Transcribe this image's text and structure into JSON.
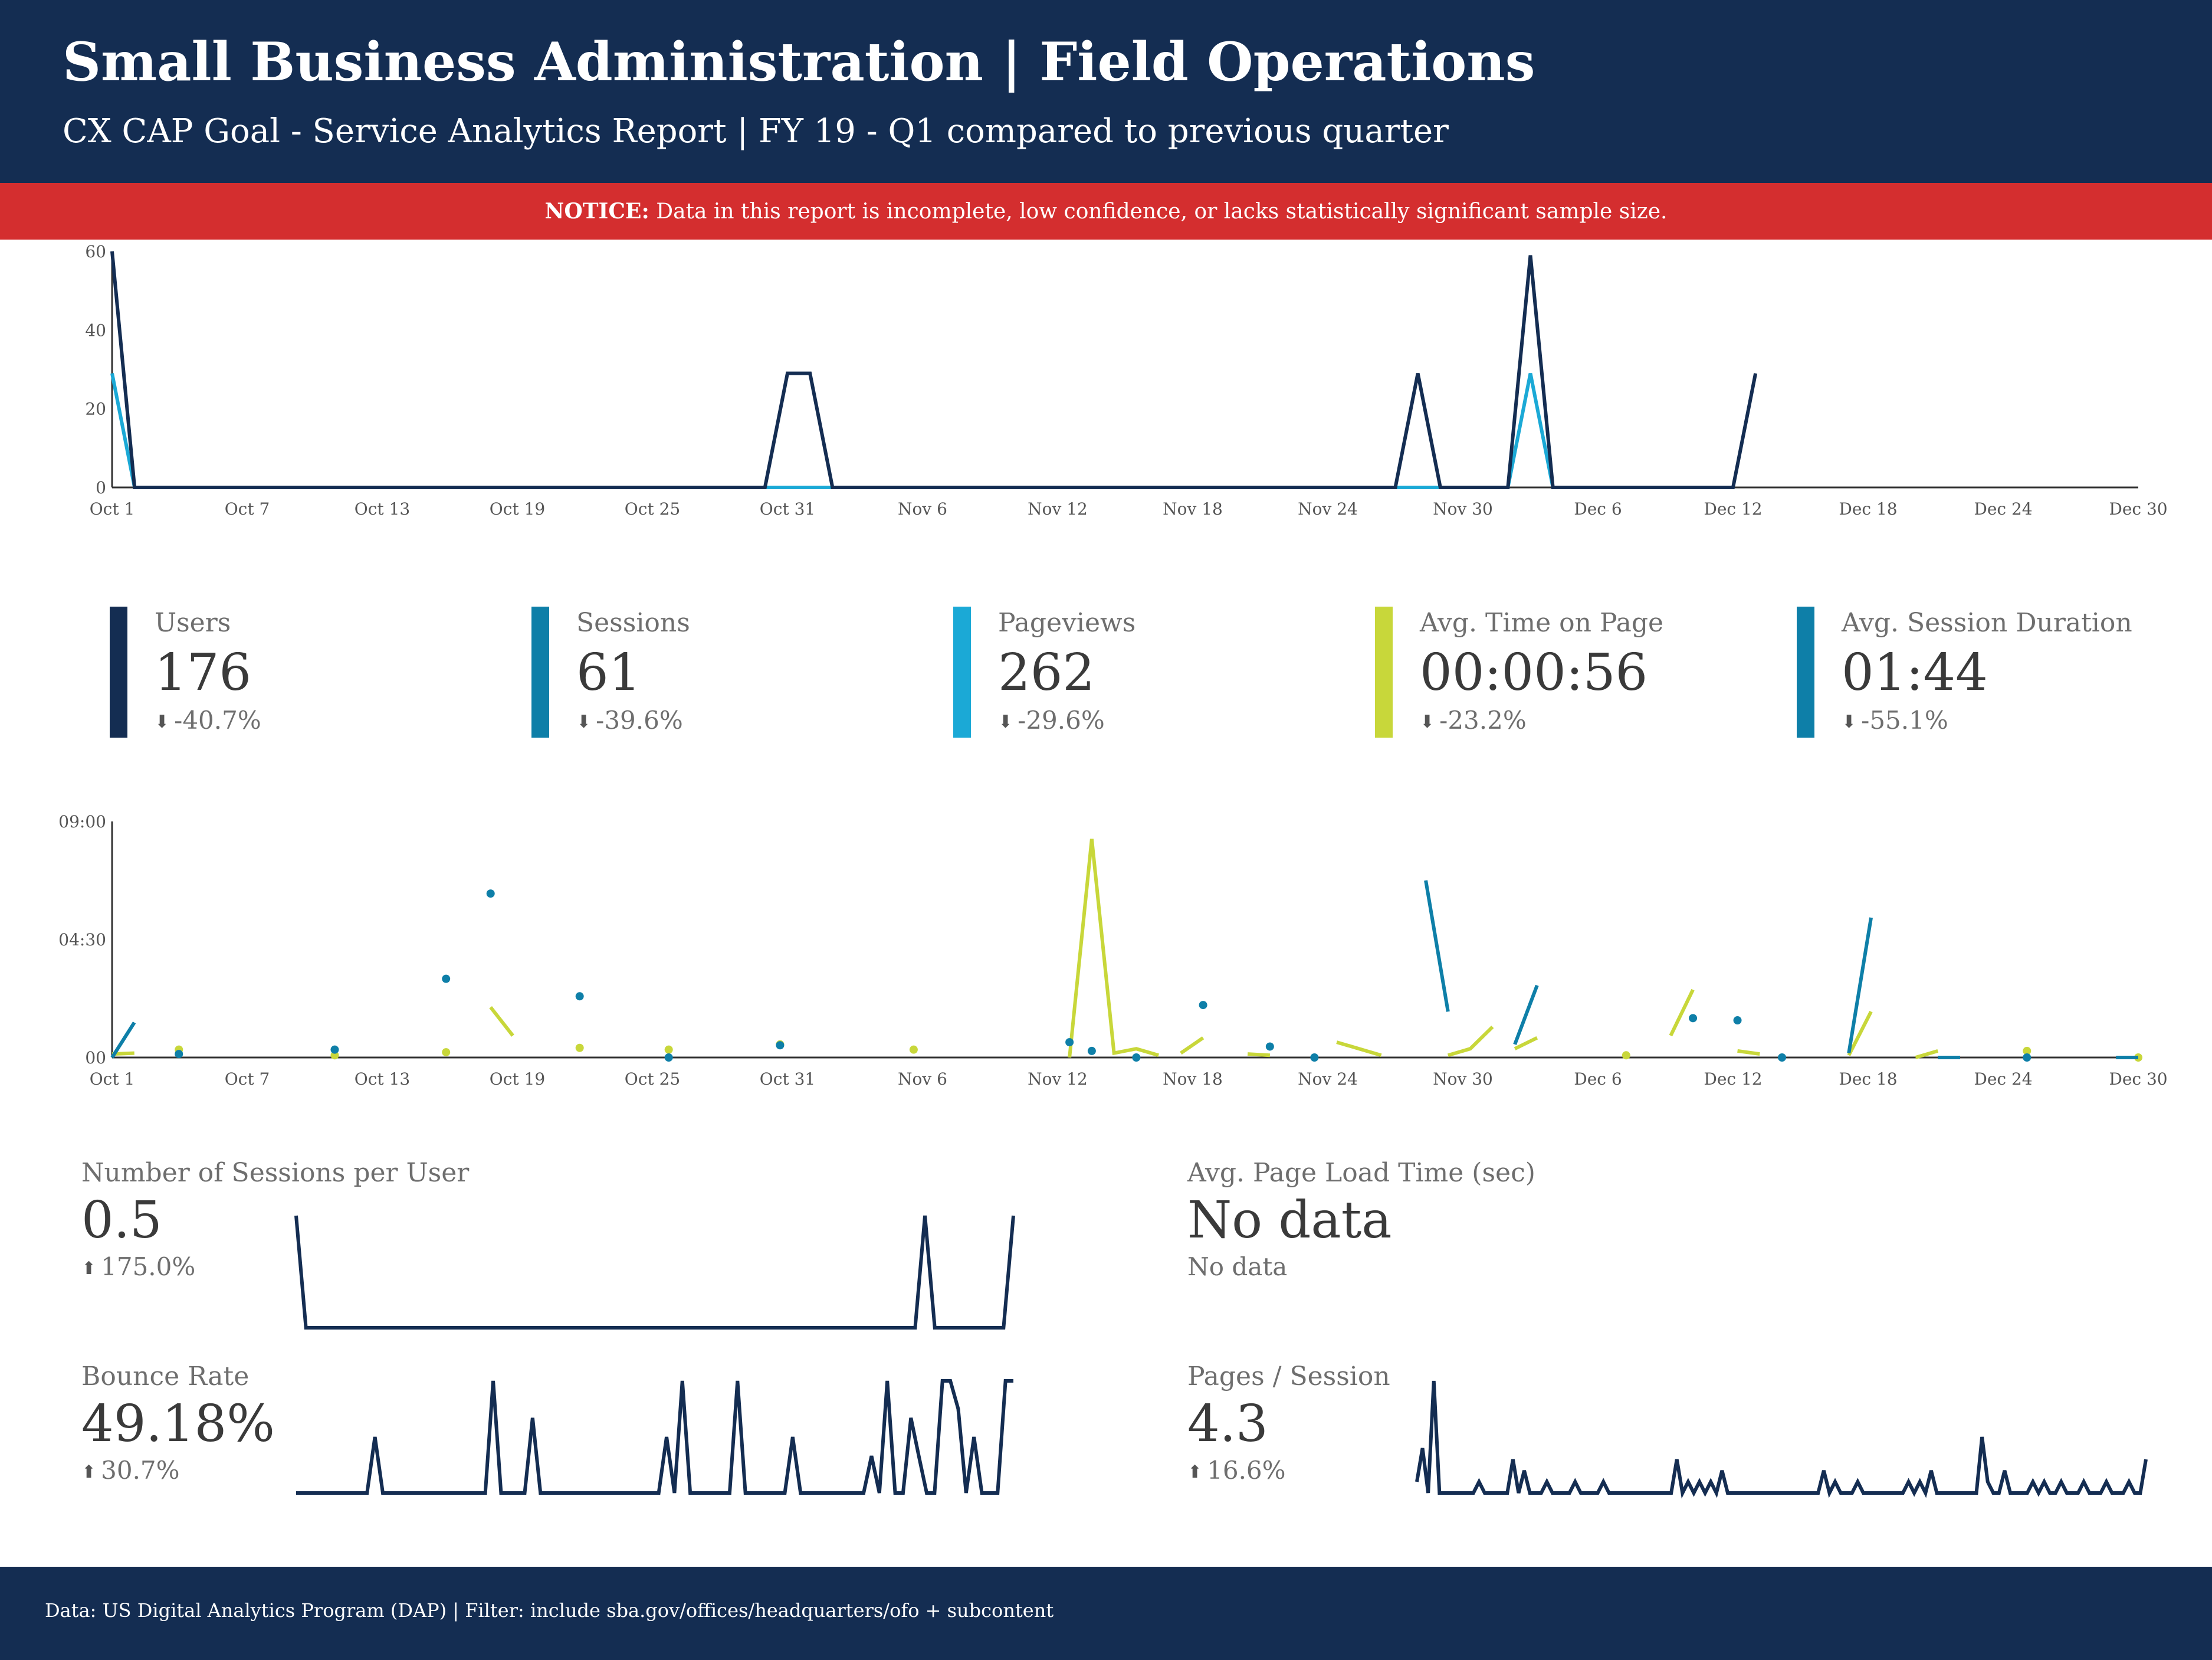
{
  "header": {
    "title": "Small Business Administration | Field Operations",
    "subtitle": "CX CAP Goal - Service Analytics Report | FY 19 - Q1 compared to previous quarter"
  },
  "notice": {
    "label": "NOTICE:",
    "text": " Data in this report is incomplete, low confidence, or lacks statistically significant sample size."
  },
  "colors": {
    "navy": "#142d52",
    "teal": "#0e7fa8",
    "sky": "#1ba9d6",
    "lime": "#c8d73a",
    "red": "#d42e2f"
  },
  "kpis": [
    {
      "label": "Users",
      "value": "176",
      "change": "-40.7%",
      "direction": "down",
      "color": "#142d52"
    },
    {
      "label": "Sessions",
      "value": "61",
      "change": "-39.6%",
      "direction": "down",
      "color": "#0e7fa8"
    },
    {
      "label": "Pageviews",
      "value": "262",
      "change": "-29.6%",
      "direction": "down",
      "color": "#1ba9d6"
    },
    {
      "label": "Avg. Time on Page",
      "value": "00:00:56",
      "change": "-23.2%",
      "direction": "down",
      "color": "#c8d73a"
    },
    {
      "label": "Avg. Session Duration",
      "value": "01:44",
      "change": "-55.1%",
      "direction": "down",
      "color": "#0e7fa8"
    }
  ],
  "metrics": {
    "sessions_per_user": {
      "label": "Number of Sessions per User",
      "value": "0.5",
      "change": "175.0%",
      "direction": "up"
    },
    "page_load": {
      "label": "Avg. Page Load Time (sec)",
      "value": "No data",
      "change": "No data"
    },
    "bounce_rate": {
      "label": "Bounce Rate",
      "value": "49.18%",
      "change": "30.7%",
      "direction": "up"
    },
    "pages_per_session": {
      "label": "Pages / Session",
      "value": "4.3",
      "change": "16.6%",
      "direction": "up"
    }
  },
  "footer": {
    "text": "Data: US Digital Analytics Program (DAP) | Filter: include sba.gov/offices/headquarters/ofo + subcontent"
  },
  "chart_data": [
    {
      "type": "line",
      "x_ticks": [
        "Oct 1",
        "Oct 7",
        "Oct 13",
        "Oct 19",
        "Oct 25",
        "Oct 31",
        "Nov 6",
        "Nov 12",
        "Nov 18",
        "Nov 24",
        "Nov 30",
        "Dec 6",
        "Dec 12",
        "Dec 18",
        "Dec 24",
        "Dec 30"
      ],
      "y_ticks": [
        "0",
        "20",
        "40",
        "60"
      ],
      "ylim": [
        0,
        60
      ],
      "day_range": [
        0,
        90
      ],
      "series": [
        {
          "key": "users",
          "color": "#142d52",
          "points": [
            [
              0,
              60
            ],
            [
              1,
              0
            ],
            [
              29,
              0
            ],
            [
              30,
              29
            ],
            [
              31,
              29
            ],
            [
              32,
              0
            ],
            [
              57,
              0
            ],
            [
              58,
              29
            ],
            [
              59,
              0
            ],
            [
              62,
              0
            ],
            [
              63,
              59
            ],
            [
              64,
              0
            ],
            [
              72,
              0
            ],
            [
              73,
              29
            ]
          ]
        },
        {
          "key": "sessions",
          "color": "#1ba9d6",
          "points": [
            [
              0,
              29
            ],
            [
              1,
              0
            ],
            [
              62,
              0
            ],
            [
              63,
              29
            ],
            [
              64,
              0
            ],
            [
              72,
              0
            ]
          ]
        }
      ]
    },
    {
      "type": "line",
      "x_ticks": [
        "Oct 1",
        "Oct 7",
        "Oct 13",
        "Oct 19",
        "Oct 25",
        "Oct 31",
        "Nov 6",
        "Nov 12",
        "Nov 18",
        "Nov 24",
        "Nov 30",
        "Dec 6",
        "Dec 12",
        "Dec 18",
        "Dec 24",
        "Dec 30"
      ],
      "y_ticks": [
        "00",
        "04:30",
        "09:00"
      ],
      "ylim": [
        0,
        540
      ],
      "day_range": [
        0,
        91
      ],
      "series": [
        {
          "key": "avg_time_on_page",
          "color": "#c8d73a",
          "segments": [
            [
              [
                0,
                8
              ],
              [
                1,
                10
              ]
            ],
            [
              [
                17,
                115
              ],
              [
                18,
                50
              ]
            ],
            [
              [
                43,
                0
              ],
              [
                44,
                500
              ],
              [
                45,
                10
              ],
              [
                46,
                20
              ],
              [
                47,
                5
              ]
            ],
            [
              [
                48,
                10
              ],
              [
                49,
                45
              ]
            ],
            [
              [
                51,
                8
              ],
              [
                52,
                5
              ]
            ],
            [
              [
                55,
                35
              ],
              [
                57,
                5
              ]
            ],
            [
              [
                60,
                5
              ],
              [
                61,
                20
              ],
              [
                62,
                70
              ]
            ],
            [
              [
                63,
                20
              ],
              [
                64,
                45
              ]
            ],
            [
              [
                70,
                50
              ],
              [
                71,
                155
              ]
            ],
            [
              [
                73,
                15
              ],
              [
                74,
                8
              ]
            ],
            [
              [
                78,
                5
              ],
              [
                79,
                105
              ]
            ],
            [
              [
                81,
                0
              ],
              [
                82,
                15
              ]
            ]
          ],
          "dots": [
            [
              3,
              18
            ],
            [
              10,
              5
            ],
            [
              15,
              12
            ],
            [
              21,
              22
            ],
            [
              25,
              18
            ],
            [
              30,
              30
            ],
            [
              36,
              18
            ],
            [
              68,
              5
            ],
            [
              86,
              15
            ],
            [
              91,
              0
            ]
          ]
        },
        {
          "key": "avg_session_duration",
          "color": "#0e7fa8",
          "segments": [
            [
              [
                0,
                0
              ],
              [
                1,
                80
              ]
            ],
            [
              [
                59,
                405
              ],
              [
                60,
                105
              ]
            ],
            [
              [
                63,
                30
              ],
              [
                64,
                165
              ]
            ],
            [
              [
                78,
                10
              ],
              [
                79,
                320
              ]
            ],
            [
              [
                82,
                0
              ],
              [
                83,
                0
              ]
            ],
            [
              [
                90,
                0
              ],
              [
                91,
                0
              ]
            ]
          ],
          "dots": [
            [
              3,
              8
            ],
            [
              10,
              18
            ],
            [
              15,
              180
            ],
            [
              17,
              375
            ],
            [
              21,
              140
            ],
            [
              25,
              0
            ],
            [
              30,
              28
            ],
            [
              43,
              35
            ],
            [
              44,
              15
            ],
            [
              46,
              0
            ],
            [
              49,
              120
            ],
            [
              52,
              25
            ],
            [
              54,
              0
            ],
            [
              71,
              90
            ],
            [
              73,
              85
            ],
            [
              75,
              0
            ],
            [
              86,
              0
            ]
          ]
        }
      ]
    },
    {
      "type": "line",
      "key": "sessions_per_user_sparkline",
      "color": "#142d52",
      "ylim": [
        0,
        1
      ],
      "values": [
        1,
        0,
        0,
        0,
        0,
        0,
        0,
        0,
        0,
        0,
        0,
        0,
        0,
        0,
        0,
        0,
        0,
        0,
        0,
        0,
        0,
        0,
        0,
        0,
        0,
        0,
        0,
        0,
        0,
        0,
        0,
        0,
        0,
        0,
        0,
        0,
        0,
        0,
        0,
        0,
        0,
        0,
        0,
        0,
        0,
        0,
        0,
        0,
        0,
        0,
        0,
        0,
        0,
        0,
        0,
        0,
        0,
        0,
        0,
        0,
        0,
        0,
        0,
        0,
        1,
        0,
        0,
        0,
        0,
        0,
        0,
        0,
        0,
        1
      ]
    },
    {
      "type": "line",
      "key": "bounce_rate_sparkline",
      "color": "#142d52",
      "ylim": [
        0,
        1
      ],
      "values": [
        0,
        0,
        0,
        0,
        0,
        0,
        0,
        0,
        0,
        0,
        0.5,
        0,
        0,
        0,
        0,
        0,
        0,
        0,
        0,
        0,
        0,
        0,
        0,
        0,
        0,
        1,
        0,
        0,
        0,
        0,
        0.67,
        0,
        0,
        0,
        0,
        0,
        0,
        0,
        0,
        0,
        0,
        0,
        0,
        0,
        0,
        0,
        0,
        0.5,
        0,
        1,
        0,
        0,
        0,
        0,
        0,
        0,
        1,
        0,
        0,
        0,
        0,
        0,
        0,
        0.5,
        0,
        0,
        0,
        0,
        0,
        0,
        0,
        0,
        0,
        0.33,
        0,
        1,
        0,
        0,
        0.67,
        0.33,
        0,
        0,
        1,
        1,
        0.75,
        0,
        0.5,
        0,
        0,
        0,
        1,
        1
      ]
    },
    {
      "type": "line",
      "key": "pages_per_session_sparkline",
      "color": "#142d52",
      "ylim": [
        0,
        10
      ],
      "values": [
        1,
        4,
        0,
        10,
        0,
        0,
        0,
        0,
        0,
        0,
        0,
        1,
        0,
        0,
        0,
        0,
        0,
        3,
        0,
        2,
        0,
        0,
        0,
        1,
        0,
        0,
        0,
        0,
        1,
        0,
        0,
        0,
        0,
        1,
        0,
        0,
        0,
        0,
        0,
        0,
        0,
        0,
        0,
        0,
        0,
        0,
        3,
        0,
        1,
        0,
        1,
        0,
        1,
        0,
        2,
        0,
        0,
        0,
        0,
        0,
        0,
        0,
        0,
        0,
        0,
        0,
        0,
        0,
        0,
        0,
        0,
        0,
        2,
        0,
        1,
        0,
        0,
        0,
        1,
        0,
        0,
        0,
        0,
        0,
        0,
        0,
        0,
        1,
        0,
        1,
        0,
        2,
        0,
        0,
        0,
        0,
        0,
        0,
        0,
        0,
        5,
        1,
        0,
        0,
        2,
        0,
        0,
        0,
        0,
        1,
        0,
        1,
        0,
        0,
        1,
        0,
        0,
        0,
        1,
        0,
        0,
        0,
        1,
        0,
        0,
        0,
        1,
        0,
        0,
        3
      ]
    }
  ]
}
